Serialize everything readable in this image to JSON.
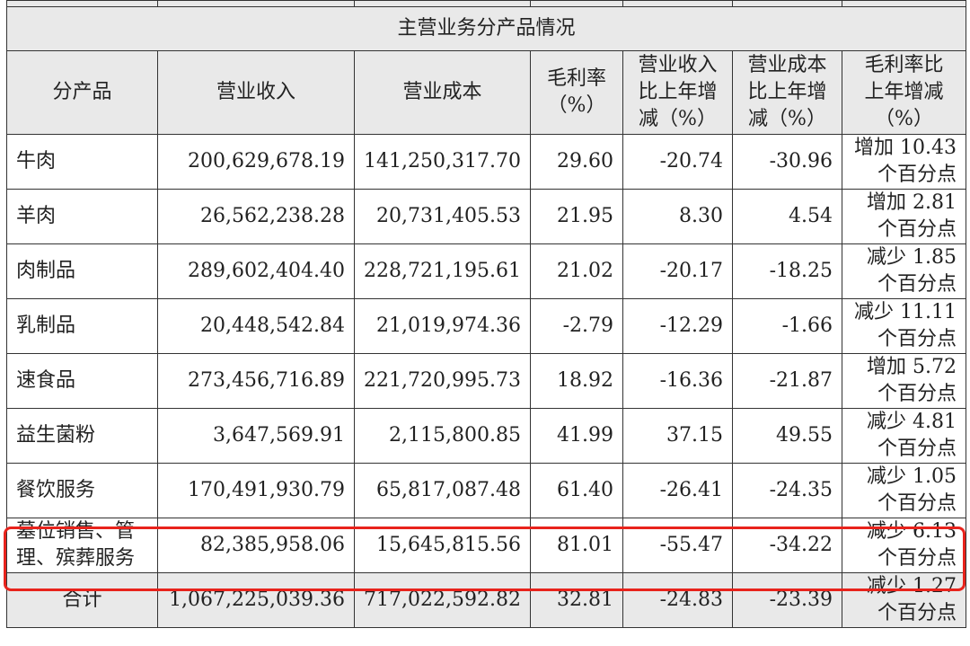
{
  "table": {
    "title": "主营业务分产品情况",
    "header": [
      [
        "分产品"
      ],
      [
        "营业收入"
      ],
      [
        "营业成本"
      ],
      [
        "毛利率",
        "（%）"
      ],
      [
        "营业收入",
        "比上年增",
        "减（%）"
      ],
      [
        "营业成本",
        "比上年增",
        "减（%）"
      ],
      [
        "毛利率比",
        "上年增减",
        "（%）"
      ]
    ],
    "rows": [
      [
        [
          "牛肉"
        ],
        [
          "200,629,678.19"
        ],
        [
          "141,250,317.70"
        ],
        [
          "29.60"
        ],
        [
          "-20.74"
        ],
        [
          "-30.96"
        ],
        [
          "增加 10.43",
          "个百分点"
        ]
      ],
      [
        [
          "羊肉"
        ],
        [
          "26,562,238.28"
        ],
        [
          "20,731,405.53"
        ],
        [
          "21.95"
        ],
        [
          "8.30"
        ],
        [
          "4.54"
        ],
        [
          "增加 2.81",
          "个百分点"
        ]
      ],
      [
        [
          "肉制品"
        ],
        [
          "289,602,404.40"
        ],
        [
          "228,721,195.61"
        ],
        [
          "21.02"
        ],
        [
          "-20.17"
        ],
        [
          "-18.25"
        ],
        [
          "减少 1.85",
          "个百分点"
        ]
      ],
      [
        [
          "乳制品"
        ],
        [
          "20,448,542.84"
        ],
        [
          "21,019,974.36"
        ],
        [
          "-2.79"
        ],
        [
          "-12.29"
        ],
        [
          "-1.66"
        ],
        [
          "减少 11.11",
          "个百分点"
        ]
      ],
      [
        [
          "速食品"
        ],
        [
          "273,456,716.89"
        ],
        [
          "221,720,995.73"
        ],
        [
          "18.92"
        ],
        [
          "-16.36"
        ],
        [
          "-21.87"
        ],
        [
          "增加 5.72",
          "个百分点"
        ]
      ],
      [
        [
          "益生菌粉"
        ],
        [
          "3,647,569.91"
        ],
        [
          "2,115,800.85"
        ],
        [
          "41.99"
        ],
        [
          "37.15"
        ],
        [
          "49.55"
        ],
        [
          "减少 4.81",
          "个百分点"
        ]
      ],
      [
        [
          "餐饮服务"
        ],
        [
          "170,491,930.79"
        ],
        [
          "65,817,087.48"
        ],
        [
          "61.40"
        ],
        [
          "-26.41"
        ],
        [
          "-24.35"
        ],
        [
          "减少 1.05",
          "个百分点"
        ]
      ],
      [
        [
          "墓位销售、管",
          "理、殡葬服务"
        ],
        [
          "82,385,958.06"
        ],
        [
          "15,645,815.56"
        ],
        [
          "81.01"
        ],
        [
          "-55.47"
        ],
        [
          "-34.22"
        ],
        [
          "减少 6.13",
          "个百分点"
        ]
      ],
      [
        [
          "合计"
        ],
        [
          "1,067,225,039.36"
        ],
        [
          "717,022,592.82"
        ],
        [
          "32.81"
        ],
        [
          "-24.83"
        ],
        [
          "-23.39"
        ],
        [
          "减少 1.27",
          "个百分点"
        ]
      ]
    ]
  }
}
